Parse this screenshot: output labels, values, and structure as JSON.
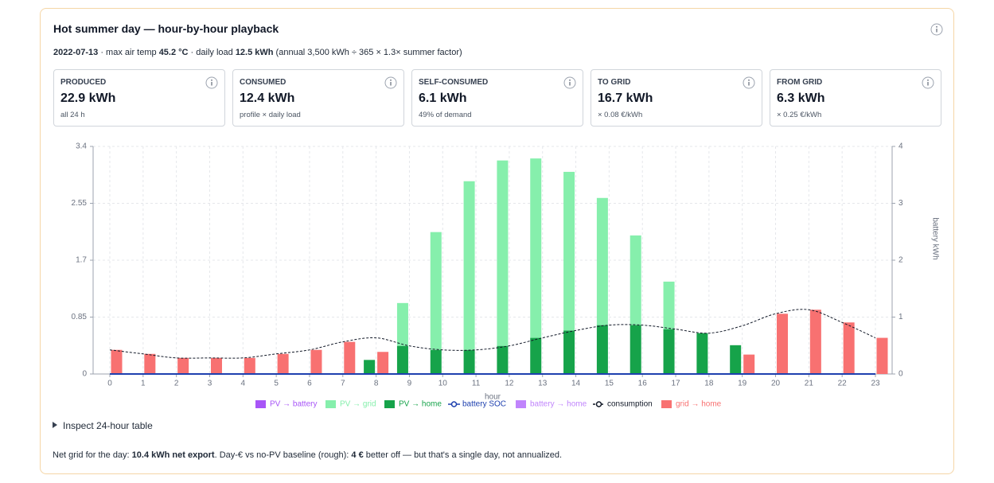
{
  "header": {
    "title": "Hot summer day — hour-by-hour playback"
  },
  "subtitle": [
    {
      "text": "2022-07-13",
      "bold": true
    },
    {
      "text": " · max air temp "
    },
    {
      "text": "45.2 °C",
      "bold": true
    },
    {
      "text": " · daily load "
    },
    {
      "text": "12.5 kWh",
      "bold": true
    },
    {
      "text": " (annual 3,500 kWh ÷ 365 × 1.3× summer factor)"
    }
  ],
  "kpis": [
    {
      "label": "PRODUCED",
      "value": "22.9 kWh",
      "note": "all 24 h"
    },
    {
      "label": "CONSUMED",
      "value": "12.4 kWh",
      "note": "profile × daily load"
    },
    {
      "label": "SELF-CONSUMED",
      "value": "6.1 kWh",
      "note": "49% of demand"
    },
    {
      "label": "TO GRID",
      "value": "16.7 kWh",
      "note": "× 0.08 €/kWh"
    },
    {
      "label": "FROM GRID",
      "value": "6.3 kWh",
      "note": "× 0.25 €/kWh"
    }
  ],
  "chart_data": {
    "type": "bar",
    "x_label": "hour",
    "y2_label": "battery kWh",
    "categories": [
      "0",
      "1",
      "2",
      "3",
      "4",
      "5",
      "6",
      "7",
      "8",
      "9",
      "10",
      "11",
      "12",
      "13",
      "14",
      "15",
      "16",
      "17",
      "18",
      "19",
      "20",
      "21",
      "22",
      "23"
    ],
    "ylim": [
      0,
      3.4
    ],
    "yticks": [
      0,
      0.85,
      1.7,
      2.55,
      3.4
    ],
    "y2lim": [
      0,
      4
    ],
    "y2ticks": [
      0,
      1,
      2,
      3,
      4
    ],
    "grid": true,
    "legend": "bottom",
    "series": [
      {
        "name": "PV → battery",
        "color": "#a855f7",
        "type": "bar",
        "stack": "pv",
        "values": [
          0,
          0,
          0,
          0,
          0,
          0,
          0,
          0,
          0,
          0,
          0,
          0,
          0,
          0,
          0,
          0,
          0,
          0,
          0,
          0,
          0,
          0,
          0,
          0
        ]
      },
      {
        "name": "PV → grid",
        "color": "#86efac",
        "type": "bar",
        "stack": "pv",
        "values": [
          0,
          0,
          0,
          0,
          0,
          0,
          0,
          0,
          0,
          0.64,
          1.76,
          2.52,
          2.77,
          2.68,
          2.37,
          1.9,
          1.34,
          0.71,
          0,
          0,
          0,
          0,
          0,
          0
        ]
      },
      {
        "name": "PV → home",
        "color": "#16a34a",
        "type": "bar",
        "stack": "pv",
        "values": [
          0,
          0,
          0,
          0,
          0,
          0,
          0,
          0,
          0.21,
          0.42,
          0.36,
          0.36,
          0.42,
          0.54,
          0.65,
          0.73,
          0.73,
          0.67,
          0.61,
          0.43,
          0,
          0,
          0,
          0
        ]
      },
      {
        "name": "battery SOC",
        "color": "#1e40af",
        "type": "line",
        "axis": "y2",
        "values": [
          0,
          0,
          0,
          0,
          0,
          0,
          0,
          0,
          0,
          0,
          0,
          0,
          0,
          0,
          0,
          0,
          0,
          0,
          0,
          0,
          0,
          0,
          0,
          0
        ]
      },
      {
        "name": "battery → home",
        "color": "#c084fc",
        "type": "bar",
        "stack": "grid",
        "values": [
          0,
          0,
          0,
          0,
          0,
          0,
          0,
          0,
          0,
          0,
          0,
          0,
          0,
          0,
          0,
          0,
          0,
          0,
          0,
          0,
          0,
          0,
          0,
          0
        ]
      },
      {
        "name": "consumption",
        "color": "#111827",
        "type": "line",
        "dashed": true,
        "values": [
          0.36,
          0.3,
          0.24,
          0.24,
          0.24,
          0.3,
          0.36,
          0.48,
          0.54,
          0.42,
          0.36,
          0.36,
          0.42,
          0.54,
          0.65,
          0.73,
          0.73,
          0.67,
          0.61,
          0.72,
          0.9,
          0.96,
          0.77,
          0.54
        ]
      },
      {
        "name": "grid → home",
        "color": "#f87171",
        "type": "bar",
        "stack": "grid",
        "values": [
          0.36,
          0.3,
          0.24,
          0.24,
          0.24,
          0.3,
          0.36,
          0.48,
          0.33,
          0,
          0,
          0,
          0,
          0,
          0,
          0,
          0,
          0,
          0,
          0.29,
          0.9,
          0.96,
          0.77,
          0.54
        ]
      }
    ]
  },
  "details": {
    "summary": "Inspect 24-hour table"
  },
  "footer": [
    {
      "text": "Net grid for the day: "
    },
    {
      "text": "10.4 kWh net export",
      "bold": true
    },
    {
      "text": ". Day-€ vs no-PV baseline (rough): "
    },
    {
      "text": "4 €",
      "bold": true
    },
    {
      "text": " better off — but that's a single day, not annualized."
    }
  ]
}
